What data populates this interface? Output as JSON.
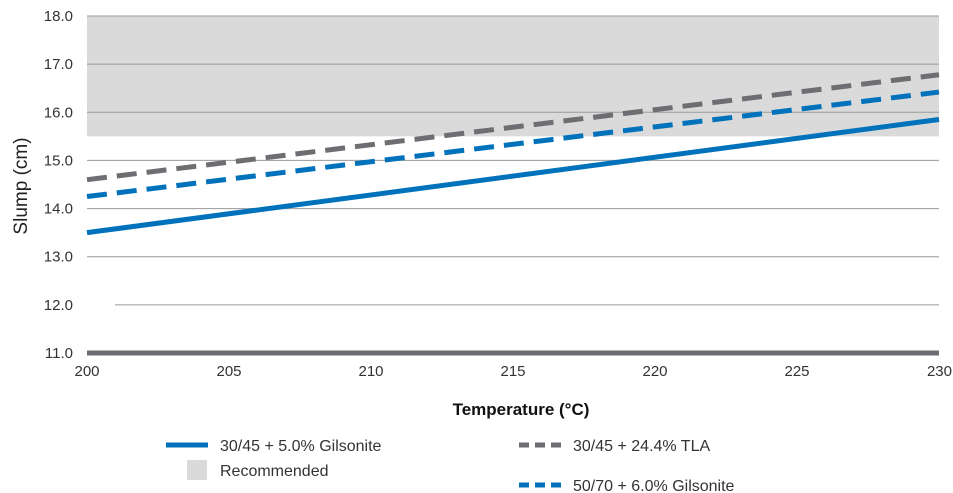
{
  "chart_data": {
    "type": "line",
    "xlabel": "Temperature (°C)",
    "ylabel": "Slump (cm)",
    "xlim": [
      200,
      230
    ],
    "ylim": [
      11.0,
      18.0
    ],
    "x_ticks": [
      "200",
      "205",
      "210",
      "215",
      "220",
      "225",
      "230"
    ],
    "y_ticks": [
      "11.0",
      "12.0",
      "13.0",
      "14.0",
      "15.0",
      "16.0",
      "17.0",
      "18.0"
    ],
    "grid": "horizontal",
    "legend_position": "bottom",
    "recommended_band": {
      "name": "Recommended",
      "y_from": 15.5,
      "y_to": 18.0,
      "color": "#dadada"
    },
    "series": [
      {
        "name": "30/45 + 5.0% Gilsonite",
        "color": "#0072bc",
        "style": "solid",
        "x": [
          200,
          230
        ],
        "y": [
          13.5,
          15.85
        ]
      },
      {
        "name": "30/45 + 24.4% TLA",
        "color": "#6d6e71",
        "style": "dashed",
        "x": [
          200,
          230
        ],
        "y": [
          14.6,
          16.78
        ]
      },
      {
        "name": "50/70 + 6.0% Gilsonite",
        "color": "#0072bc",
        "style": "dashed",
        "x": [
          200,
          230
        ],
        "y": [
          14.25,
          16.42
        ]
      }
    ]
  }
}
